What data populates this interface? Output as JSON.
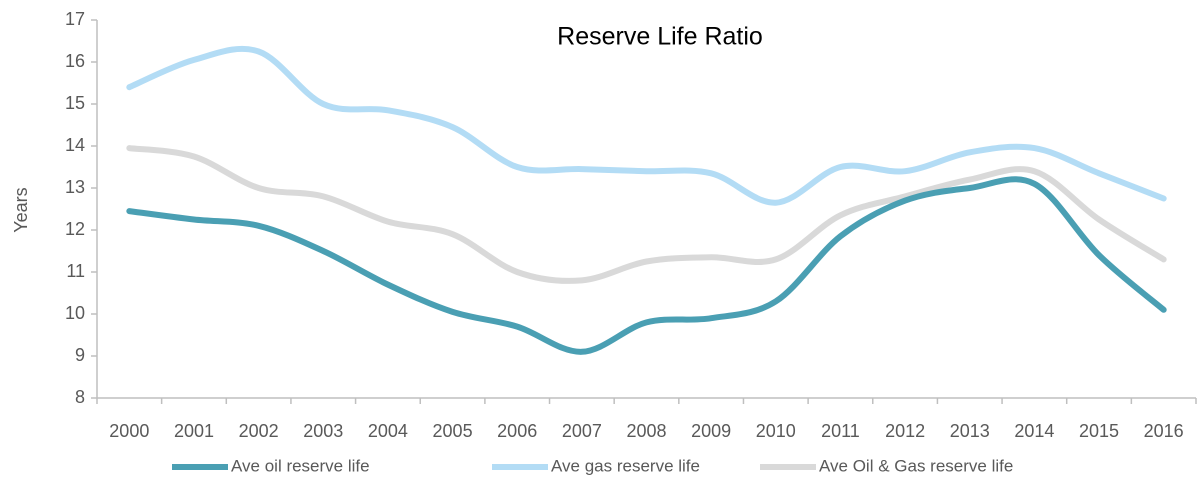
{
  "chart_data": {
    "type": "line",
    "title": "Reserve Life Ratio",
    "y_label": "Years",
    "categories": [
      "2000",
      "2001",
      "2002",
      "2003",
      "2004",
      "2005",
      "2006",
      "2007",
      "2008",
      "2009",
      "2010",
      "2011",
      "2012",
      "2013",
      "2014",
      "2015",
      "2016"
    ],
    "series": [
      {
        "name": "Ave oil reserve life",
        "color": "#4a9fb3",
        "values": [
          12.45,
          12.25,
          12.1,
          11.5,
          10.7,
          10.05,
          9.7,
          9.1,
          9.8,
          9.9,
          10.3,
          11.85,
          12.7,
          13.0,
          13.1,
          11.4,
          10.1
        ]
      },
      {
        "name": "Ave gas reserve life",
        "color": "#b3dcf5",
        "values": [
          15.4,
          16.05,
          16.25,
          15.0,
          14.85,
          14.45,
          13.5,
          13.45,
          13.4,
          13.35,
          12.65,
          13.5,
          13.4,
          13.85,
          13.95,
          13.35,
          12.75
        ]
      },
      {
        "name": "Ave Oil & Gas reserve life",
        "color": "#d9d9d9",
        "values": [
          13.95,
          13.75,
          13.0,
          12.8,
          12.2,
          11.9,
          11.0,
          10.8,
          11.25,
          11.35,
          11.3,
          12.35,
          12.8,
          13.2,
          13.4,
          12.25,
          11.3
        ]
      }
    ],
    "ylim": [
      8,
      17
    ],
    "yticks": [
      8,
      9,
      10,
      11,
      12,
      13,
      14,
      15,
      16,
      17
    ],
    "legend": "bottom",
    "grid": false
  }
}
